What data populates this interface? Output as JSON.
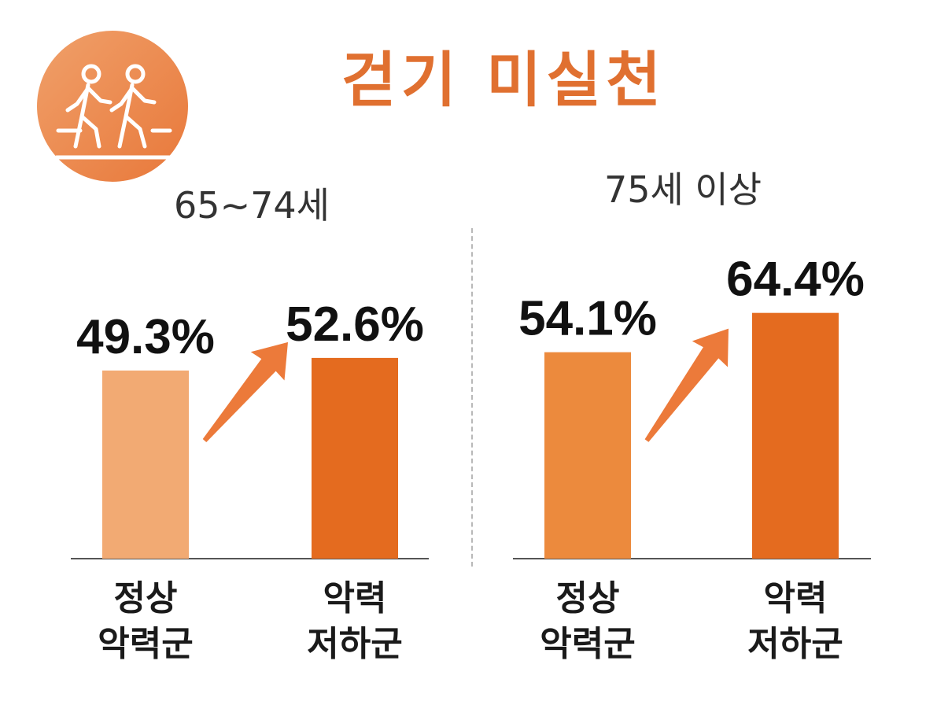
{
  "header": {
    "title": "걷기 미실천"
  },
  "icon": {
    "name": "walking-people-icon",
    "bg": "#ed8a4d"
  },
  "colors": {
    "normal": "#f2aa73",
    "low": "#e46b1f",
    "normal_old": "#ec8a3d",
    "arrow": "#ec7a3a",
    "axis": "#555555",
    "text": "#111111"
  },
  "chart_data": [
    {
      "type": "bar",
      "title": "65~74세",
      "categories": [
        "정상\n악력군",
        "악력\n저하군"
      ],
      "values": [
        49.3,
        52.6
      ],
      "labels": [
        "49.3%",
        "52.6%"
      ],
      "ylim": [
        0,
        70
      ]
    },
    {
      "type": "bar",
      "title": "75세 이상",
      "categories": [
        "정상\n악력군",
        "악력\n저하군"
      ],
      "values": [
        54.1,
        64.4
      ],
      "labels": [
        "54.1%",
        "64.4%"
      ],
      "ylim": [
        0,
        70
      ]
    }
  ]
}
